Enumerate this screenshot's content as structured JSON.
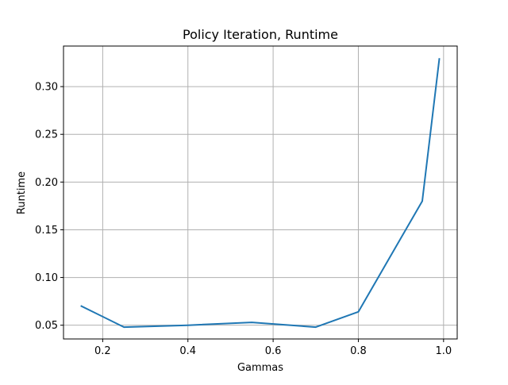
{
  "chart_data": {
    "type": "line",
    "title": "Policy Iteration, Runtime",
    "xlabel": "Gammas",
    "ylabel": "Runtime",
    "xlim": [
      0.108,
      1.032
    ],
    "ylim": [
      0.0356,
      0.3425
    ],
    "xticks": [
      0.2,
      0.4,
      0.6,
      0.8,
      1.0
    ],
    "xtick_labels": [
      "0.2",
      "0.4",
      "0.6",
      "0.8",
      "1.0"
    ],
    "yticks": [
      0.05,
      0.1,
      0.15,
      0.2,
      0.25,
      0.3
    ],
    "ytick_labels": [
      "0.05",
      "0.10",
      "0.15",
      "0.20",
      "0.25",
      "0.30"
    ],
    "grid": true,
    "series": [
      {
        "color": "#1f77b4",
        "x": [
          0.15,
          0.25,
          0.4,
          0.55,
          0.7,
          0.8,
          0.95,
          0.99
        ],
        "y": [
          0.07,
          0.048,
          0.05,
          0.053,
          0.048,
          0.064,
          0.18,
          0.329
        ]
      }
    ]
  }
}
